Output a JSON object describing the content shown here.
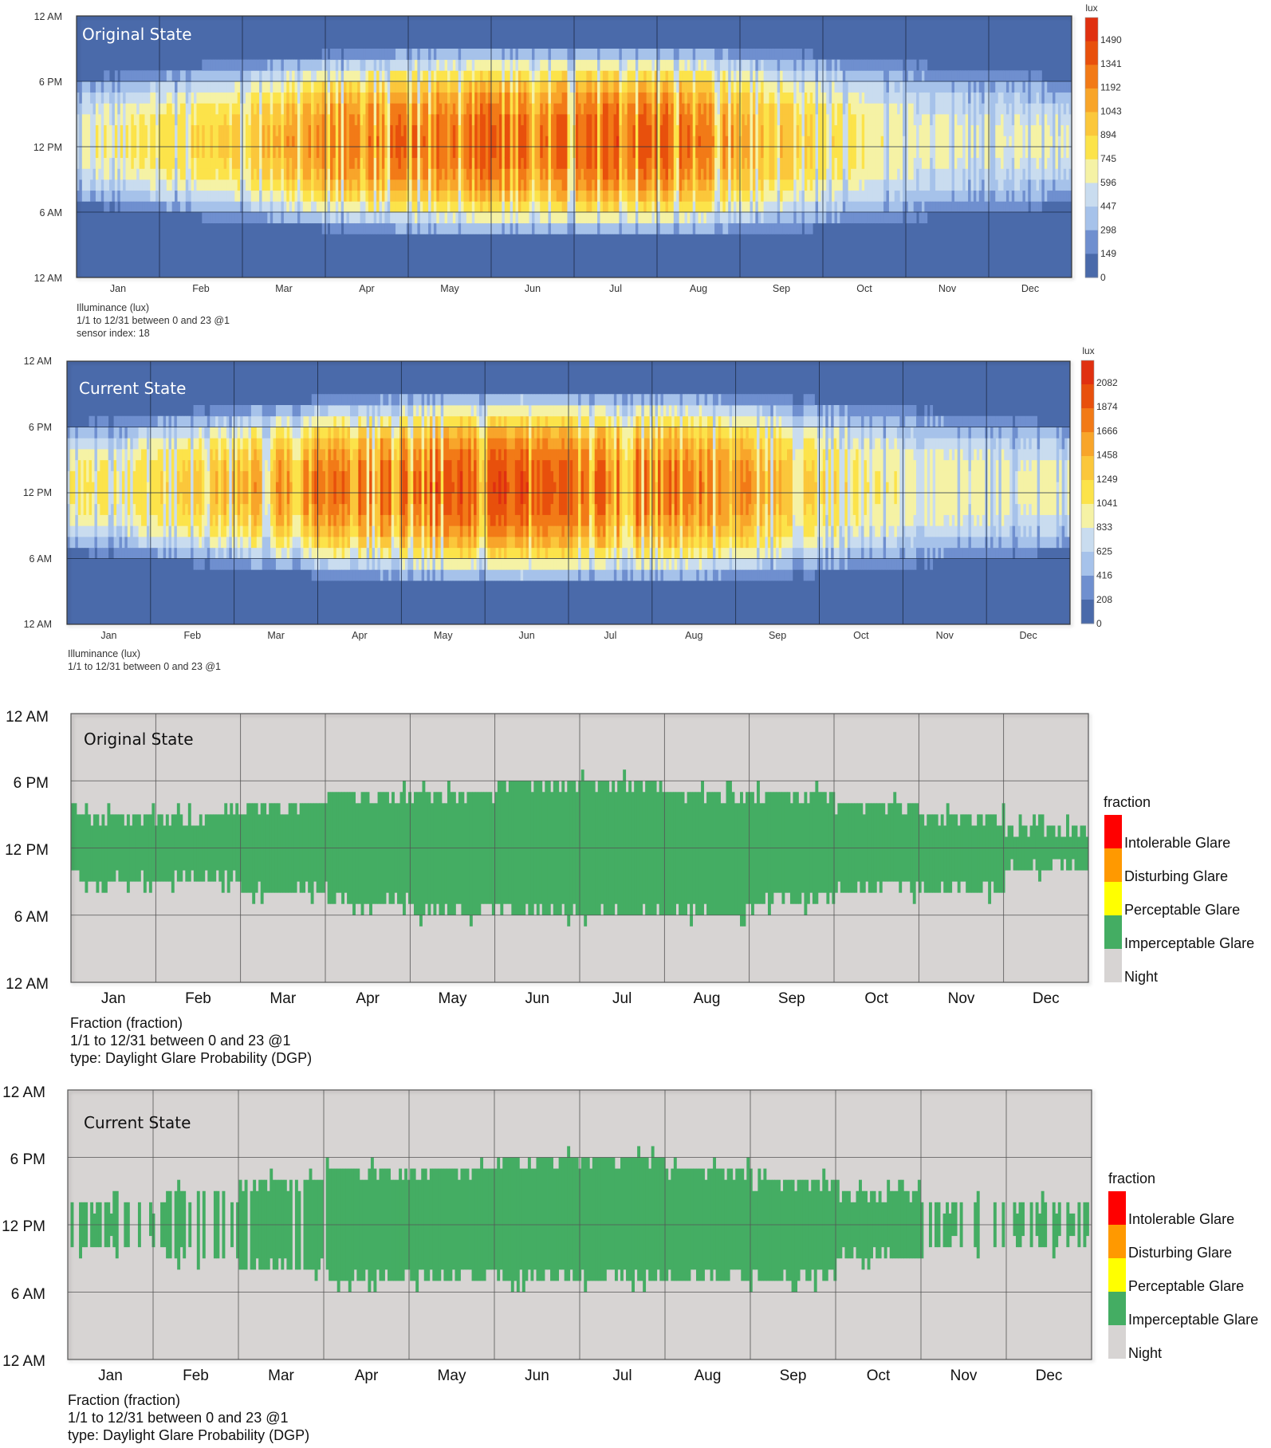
{
  "charts": [
    {
      "label": "Original State",
      "legend_unit": "lux",
      "legend_ticks": [
        "1490",
        "1341",
        "1192",
        "1043",
        "894",
        "745",
        "596",
        "447",
        "298",
        "149",
        "0"
      ],
      "footer": [
        "Illuminance (lux)",
        "1/1 to 12/31 between 0 and 23 @1",
        "sensor index: 18"
      ]
    },
    {
      "label": "Current State",
      "legend_unit": "lux",
      "legend_ticks": [
        "2082",
        "1874",
        "1666",
        "1458",
        "1249",
        "1041",
        "833",
        "625",
        "416",
        "208",
        "0"
      ],
      "footer": [
        "Illuminance (lux)",
        "1/1 to 12/31 between 0 and 23 @1"
      ]
    },
    {
      "label": "Original State",
      "legend_unit": "fraction",
      "legend_items": [
        "Intolerable Glare",
        "Disturbing Glare",
        "Perceptable Glare",
        "Imperceptable Glare",
        "Night"
      ],
      "footer": [
        "Fraction (fraction)",
        "1/1 to 12/31 between 0 and 23 @1",
        "type: Daylight Glare Probability (DGP)"
      ]
    },
    {
      "label": "Current State",
      "legend_unit": "fraction",
      "legend_items": [
        "Intolerable Glare",
        "Disturbing Glare",
        "Perceptable Glare",
        "Imperceptable Glare",
        "Night"
      ],
      "footer": [
        "Fraction (fraction)",
        "1/1 to 12/31 between 0 and 23 @1",
        "type: Daylight Glare Probability (DGP)"
      ]
    }
  ],
  "months": [
    "Jan",
    "Feb",
    "Mar",
    "Apr",
    "May",
    "Jun",
    "Jul",
    "Aug",
    "Sep",
    "Oct",
    "Nov",
    "Dec"
  ],
  "hour_labels": [
    "12 AM",
    "6 PM",
    "12 PM",
    "6 AM",
    "12 AM"
  ],
  "colors": {
    "night_blue": "#4a6aaa",
    "glare_night": "#d7d4d3",
    "imperceptable": "#44ad63",
    "perceptable": "#ffff00",
    "disturbing": "#ff9900",
    "intolerable": "#ff0000",
    "heat_scale": [
      "#4a6aaa",
      "#6f8fcf",
      "#a6c2ea",
      "#c9dcef",
      "#f5f2a5",
      "#fce34a",
      "#fbc73b",
      "#f8a52a",
      "#f27a17",
      "#e8500c",
      "#e03010"
    ]
  },
  "chart_data": [
    {
      "type": "heatmap",
      "title": "Original State",
      "x": "day of year (Jan–Dec)",
      "y": "hour of day (12 AM–12 AM)",
      "value_label": "Illuminance (lux)",
      "scale": [
        0,
        1490
      ],
      "legend_ticks": [
        0,
        149,
        298,
        447,
        596,
        745,
        894,
        1043,
        1192,
        1341,
        1490
      ],
      "monthly_peak_lux": {
        "Jan": 700,
        "Feb": 800,
        "Mar": 1000,
        "Apr": 1250,
        "May": 1350,
        "Jun": 1400,
        "Jul": 1400,
        "Aug": 1450,
        "Sep": 1150,
        "Oct": 850,
        "Nov": 620,
        "Dec": 600
      }
    },
    {
      "type": "heatmap",
      "title": "Current State",
      "x": "day of year (Jan–Dec)",
      "y": "hour of day (12 AM–12 AM)",
      "value_label": "Illuminance (lux)",
      "scale": [
        0,
        2082
      ],
      "legend_ticks": [
        0,
        208,
        416,
        625,
        833,
        1041,
        1249,
        1458,
        1666,
        1874,
        2082
      ],
      "monthly_peak_lux": {
        "Jan": 1050,
        "Feb": 1150,
        "Mar": 1500,
        "Apr": 1850,
        "May": 1950,
        "Jun": 2050,
        "Jul": 2000,
        "Aug": 1950,
        "Sep": 1700,
        "Oct": 1250,
        "Nov": 950,
        "Dec": 900
      }
    },
    {
      "type": "heatmap",
      "title": "Original State",
      "x": "day of year (Jan–Dec)",
      "y": "hour of day (12 AM–12 AM)",
      "value_label": "Daylight Glare Probability (DGP) class",
      "categories": [
        "Night",
        "Imperceptable Glare",
        "Perceptable Glare",
        "Disturbing Glare",
        "Intolerable Glare"
      ],
      "imperceptable_hours_by_month": {
        "Jan": [
          9,
          15
        ],
        "Feb": [
          9,
          15
        ],
        "Mar": [
          8,
          16
        ],
        "Apr": [
          7,
          17
        ],
        "May": [
          6,
          17
        ],
        "Jun": [
          6,
          18
        ],
        "Jul": [
          6,
          18
        ],
        "Aug": [
          6,
          17
        ],
        "Sep": [
          7,
          17
        ],
        "Oct": [
          8,
          16
        ],
        "Nov": [
          8,
          15
        ],
        "Dec": [
          10,
          14
        ]
      }
    },
    {
      "type": "heatmap",
      "title": "Current State",
      "x": "day of year (Jan–Dec)",
      "y": "hour of day (12 AM–12 AM)",
      "value_label": "Daylight Glare Probability (DGP) class",
      "categories": [
        "Night",
        "Imperceptable Glare",
        "Perceptable Glare",
        "Disturbing Glare",
        "Intolerable Glare"
      ],
      "imperceptable_hours_by_month": {
        "Jan": [
          10,
          14
        ],
        "Feb": [
          9,
          15
        ],
        "Mar": [
          8,
          16
        ],
        "Apr": [
          7,
          17
        ],
        "May": [
          7,
          17
        ],
        "Jun": [
          7,
          18
        ],
        "Jul": [
          7,
          18
        ],
        "Aug": [
          7,
          17
        ],
        "Sep": [
          7,
          16
        ],
        "Oct": [
          9,
          15
        ],
        "Nov": [
          10,
          14
        ],
        "Dec": [
          10,
          14
        ]
      }
    }
  ]
}
